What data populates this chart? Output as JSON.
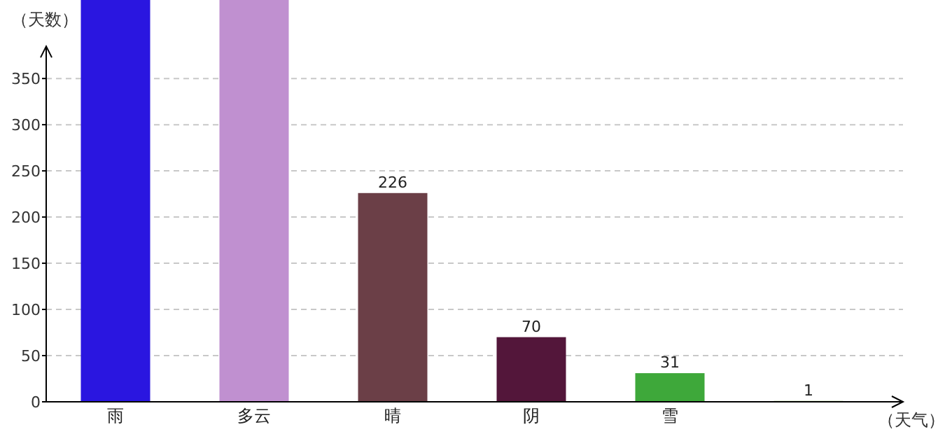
{
  "chart_data": {
    "type": "bar",
    "xlabel": "（天气）",
    "ylabel": "（天数）",
    "categories": [
      "雨",
      "多云",
      "晴",
      "阴",
      "雪",
      null
    ],
    "values": [
      435,
      435,
      226,
      70,
      31,
      1
    ],
    "colors": [
      "#2a16e0",
      "#c090d0",
      "#6b3f47",
      "#53163a",
      "#3ea83a",
      "#b0d090"
    ],
    "value_labels": [
      null,
      null,
      "226",
      "70",
      "31",
      "1"
    ],
    "ylim": [
      0,
      435
    ],
    "yticks": [
      0,
      50,
      100,
      150,
      200,
      250,
      300,
      350
    ],
    "grid": "y"
  }
}
